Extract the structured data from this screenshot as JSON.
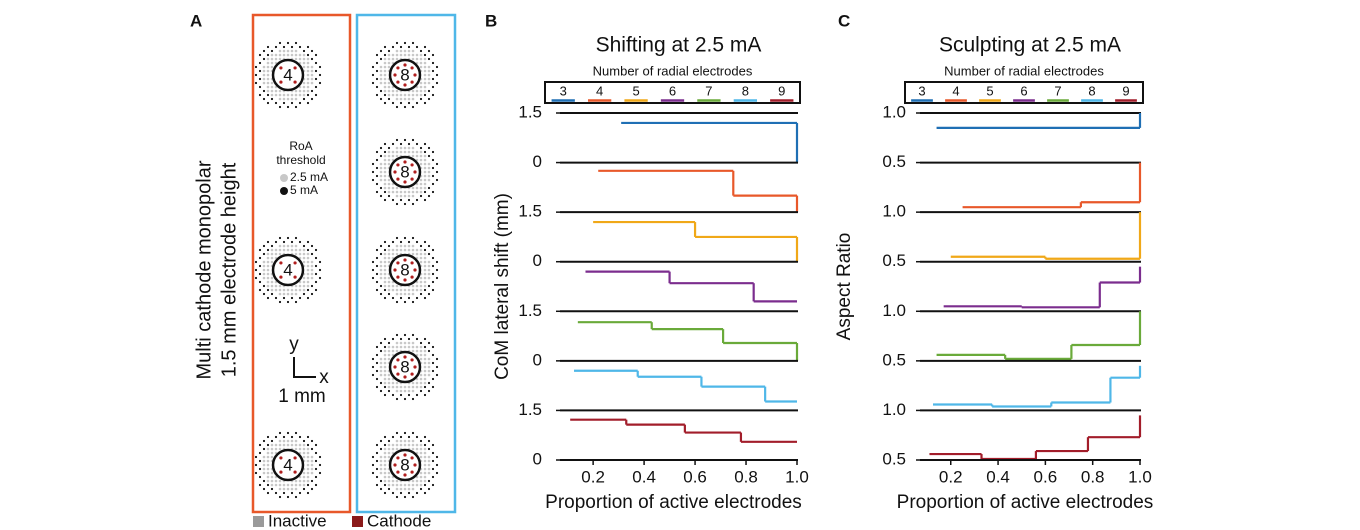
{
  "panel_a": {
    "label": "A",
    "ylabel": [
      "Multi cathode monopolar",
      "1.5 mm electrode height"
    ],
    "left_electrodes": [
      "4",
      "4",
      "4"
    ],
    "right_electrodes": [
      "8",
      "8",
      "8",
      "8",
      "8"
    ],
    "roa_legend": {
      "title": [
        "RoA",
        "threshold"
      ],
      "items": [
        "2.5 mA",
        "5 mA"
      ]
    },
    "scale_bar": {
      "y": "y",
      "x": "x",
      "length": "1 mm"
    },
    "legend": [
      "Inactive",
      "Cathode"
    ]
  },
  "chart_data": [
    {
      "type": "step",
      "panel_label": "B",
      "title": "Shifting at 2.5 mA",
      "xlabel": "Proportion of active electrodes",
      "ylabel": "CoM lateral shift (mm)",
      "legend_title": "Number of radial electrodes",
      "xlim": [
        0.07,
        1.0
      ],
      "xticks": [
        0.2,
        0.4,
        0.6,
        0.8,
        {
          "value": 1,
          "label": "1.0"
        }
      ],
      "ylim": [
        0,
        1.5
      ],
      "series": [
        {
          "name": "3",
          "color": "#1f6fb4",
          "x": [
            0.31,
            1.0
          ],
          "values": [
            1.2,
            0
          ],
          "yticks": [
            0,
            1.5
          ]
        },
        {
          "name": "4",
          "color": "#e8582a",
          "x": [
            0.22,
            0.75,
            1.0
          ],
          "values": [
            1.25,
            0.5,
            0
          ]
        },
        {
          "name": "5",
          "color": "#f0a818",
          "x": [
            0.2,
            0.6,
            1.0
          ],
          "values": [
            1.2,
            0.75,
            0
          ],
          "yticks": [
            0,
            1.5
          ]
        },
        {
          "name": "6",
          "color": "#7b2d8e",
          "x": [
            0.17,
            0.5,
            0.83,
            1.0
          ],
          "values": [
            1.2,
            0.85,
            0.3,
            0.3
          ]
        },
        {
          "name": "7",
          "color": "#6aaa3a",
          "x": [
            0.14,
            0.43,
            0.71,
            1.0
          ],
          "values": [
            1.17,
            0.96,
            0.54,
            0
          ],
          "yticks": [
            0,
            1.5
          ]
        },
        {
          "name": "8",
          "color": "#4fb7e8",
          "x": [
            0.125,
            0.375,
            0.625,
            0.875,
            1.0
          ],
          "values": [
            1.2,
            1.02,
            0.72,
            0.27,
            0.27
          ]
        },
        {
          "name": "9",
          "color": "#a21d2a",
          "x": [
            0.11,
            0.33,
            0.56,
            0.78,
            1.0
          ],
          "values": [
            1.22,
            1.07,
            0.83,
            0.55,
            0.55
          ],
          "yticks": [
            0,
            1.5
          ]
        }
      ]
    },
    {
      "type": "step",
      "panel_label": "C",
      "title": "Sculpting at 2.5 mA",
      "xlabel": "Proportion of active electrodes",
      "ylabel": "Aspect Ratio",
      "legend_title": "Number of radial electrodes",
      "xlim": [
        0.07,
        1.0
      ],
      "xticks": [
        0.2,
        0.4,
        0.6,
        0.8,
        {
          "value": 1,
          "label": "1.0"
        }
      ],
      "ylim": [
        0.5,
        1.0
      ],
      "series": [
        {
          "name": "3",
          "color": "#1f6fb4",
          "x": [
            0.14,
            1.0
          ],
          "values": [
            0.85,
            1.0
          ],
          "yticks": [
            0.5,
            {
              "value": 1,
              "label": "1.0"
            }
          ]
        },
        {
          "name": "4",
          "color": "#e8582a",
          "x": [
            0.25,
            0.75,
            1.0
          ],
          "values": [
            0.55,
            0.6,
            1.0
          ]
        },
        {
          "name": "5",
          "color": "#f0a818",
          "x": [
            0.2,
            0.6,
            1.0
          ],
          "values": [
            0.55,
            0.53,
            1.0
          ],
          "yticks": [
            0.5,
            {
              "value": 1,
              "label": "1.0"
            }
          ]
        },
        {
          "name": "6",
          "color": "#7b2d8e",
          "x": [
            0.17,
            0.5,
            0.83,
            1.0
          ],
          "values": [
            0.55,
            0.54,
            0.79,
            0.95
          ]
        },
        {
          "name": "7",
          "color": "#6aaa3a",
          "x": [
            0.14,
            0.43,
            0.71,
            1.0
          ],
          "values": [
            0.56,
            0.52,
            0.66,
            1.0
          ],
          "yticks": [
            0.5,
            {
              "value": 1,
              "label": "1.0"
            }
          ]
        },
        {
          "name": "8",
          "color": "#4fb7e8",
          "x": [
            0.125,
            0.375,
            0.625,
            0.875,
            1.0
          ],
          "values": [
            0.56,
            0.54,
            0.58,
            0.83,
            0.95
          ]
        },
        {
          "name": "9",
          "color": "#a21d2a",
          "x": [
            0.11,
            0.33,
            0.56,
            0.78,
            1.0
          ],
          "values": [
            0.56,
            0.51,
            0.59,
            0.73,
            0.95
          ],
          "yticks": [
            0.5,
            {
              "value": 1,
              "label": "1.0"
            }
          ]
        }
      ]
    }
  ]
}
